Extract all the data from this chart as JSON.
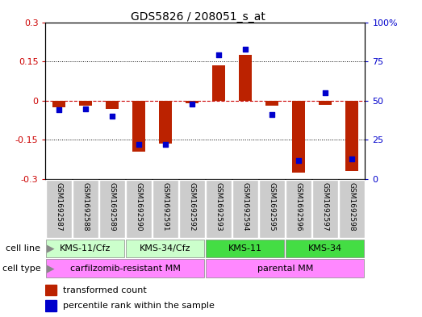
{
  "title": "GDS5826 / 208051_s_at",
  "samples": [
    "GSM1692587",
    "GSM1692588",
    "GSM1692589",
    "GSM1692590",
    "GSM1692591",
    "GSM1692592",
    "GSM1692593",
    "GSM1692594",
    "GSM1692595",
    "GSM1692596",
    "GSM1692597",
    "GSM1692598"
  ],
  "transformed_count": [
    -0.025,
    -0.02,
    -0.03,
    -0.195,
    -0.165,
    -0.01,
    0.135,
    0.175,
    -0.02,
    -0.275,
    -0.015,
    -0.27
  ],
  "percentile_rank": [
    44,
    45,
    40,
    22,
    22,
    48,
    79,
    83,
    41,
    12,
    55,
    13
  ],
  "ylim_left": [
    -0.3,
    0.3
  ],
  "ylim_right": [
    0,
    100
  ],
  "yticks_left": [
    -0.3,
    -0.15,
    0,
    0.15,
    0.3
  ],
  "ytick_labels_left": [
    "-0.3",
    "-0.15",
    "0",
    "0.15",
    "0.3"
  ],
  "yticks_right": [
    0,
    25,
    50,
    75,
    100
  ],
  "ytick_labels_right": [
    "0",
    "25",
    "50",
    "75",
    "100%"
  ],
  "cell_line_groups": [
    {
      "label": "KMS-11/Cfz",
      "start": 0,
      "end": 3,
      "color": "#ccffcc"
    },
    {
      "label": "KMS-34/Cfz",
      "start": 3,
      "end": 6,
      "color": "#ccffcc"
    },
    {
      "label": "KMS-11",
      "start": 6,
      "end": 9,
      "color": "#44dd44"
    },
    {
      "label": "KMS-34",
      "start": 9,
      "end": 12,
      "color": "#44dd44"
    }
  ],
  "cell_type_groups": [
    {
      "label": "carfilzomib-resistant MM",
      "start": 0,
      "end": 6,
      "color": "#ff88ff"
    },
    {
      "label": "parental MM",
      "start": 6,
      "end": 12,
      "color": "#ff88ff"
    }
  ],
  "bar_color": "#bb2200",
  "dot_color": "#0000cc",
  "zero_line_color": "#cc0000",
  "grid_color": "#000000",
  "sample_box_color": "#cccccc",
  "left_axis_color": "#cc0000",
  "right_axis_color": "#0000cc",
  "legend_red_label": "transformed count",
  "legend_blue_label": "percentile rank within the sample"
}
